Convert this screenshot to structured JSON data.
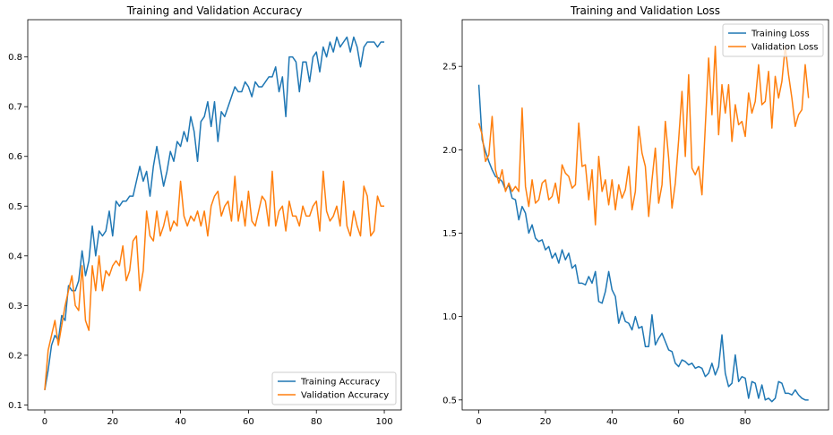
{
  "chart_data": [
    {
      "type": "line",
      "title": "Training and Validation Accuracy",
      "xlim": [
        -5,
        105
      ],
      "ylim": [
        0.09,
        0.875
      ],
      "xticks": [
        0,
        20,
        40,
        60,
        80,
        100
      ],
      "xtick_labels": [
        "0",
        "20",
        "40",
        "60",
        "80",
        "100"
      ],
      "yticks": [
        0.1,
        0.2,
        0.3,
        0.4,
        0.5,
        0.6,
        0.7,
        0.8
      ],
      "ytick_labels": [
        "0.1",
        "0.2",
        "0.3",
        "0.4",
        "0.5",
        "0.6",
        "0.7",
        "0.8"
      ],
      "grid": false,
      "legend_position": "lower-right",
      "x": [
        0,
        1,
        2,
        3,
        4,
        5,
        6,
        7,
        8,
        9,
        10,
        11,
        12,
        13,
        14,
        15,
        16,
        17,
        18,
        19,
        20,
        21,
        22,
        23,
        24,
        25,
        26,
        27,
        28,
        29,
        30,
        31,
        32,
        33,
        34,
        35,
        36,
        37,
        38,
        39,
        40,
        41,
        42,
        43,
        44,
        45,
        46,
        47,
        48,
        49,
        50,
        51,
        52,
        53,
        54,
        55,
        56,
        57,
        58,
        59,
        60,
        61,
        62,
        63,
        64,
        65,
        66,
        67,
        68,
        69,
        70,
        71,
        72,
        73,
        74,
        75,
        76,
        77,
        78,
        79,
        80,
        81,
        82,
        83,
        84,
        85,
        86,
        87,
        88,
        89,
        90,
        91,
        92,
        93,
        94,
        95,
        96,
        97,
        98,
        99,
        100
      ],
      "series": [
        {
          "name": "Training Accuracy",
          "color": "#1f77b4",
          "values": [
            0.13,
            0.17,
            0.22,
            0.24,
            0.23,
            0.28,
            0.27,
            0.34,
            0.33,
            0.33,
            0.35,
            0.41,
            0.36,
            0.39,
            0.46,
            0.4,
            0.45,
            0.44,
            0.45,
            0.49,
            0.44,
            0.51,
            0.5,
            0.51,
            0.51,
            0.52,
            0.52,
            0.55,
            0.58,
            0.55,
            0.57,
            0.52,
            0.58,
            0.62,
            0.58,
            0.54,
            0.57,
            0.61,
            0.59,
            0.63,
            0.62,
            0.65,
            0.63,
            0.68,
            0.65,
            0.59,
            0.67,
            0.68,
            0.71,
            0.66,
            0.71,
            0.63,
            0.69,
            0.68,
            0.7,
            0.72,
            0.74,
            0.73,
            0.73,
            0.75,
            0.74,
            0.72,
            0.75,
            0.74,
            0.74,
            0.75,
            0.76,
            0.76,
            0.78,
            0.73,
            0.76,
            0.68,
            0.8,
            0.8,
            0.79,
            0.73,
            0.79,
            0.79,
            0.75,
            0.8,
            0.81,
            0.77,
            0.82,
            0.8,
            0.83,
            0.81,
            0.84,
            0.82,
            0.83,
            0.84,
            0.81,
            0.84,
            0.82,
            0.78,
            0.82,
            0.83,
            0.83,
            0.83,
            0.82,
            0.83,
            0.83
          ]
        },
        {
          "name": "Validation Accuracy",
          "color": "#ff7f0e",
          "values": [
            0.13,
            0.21,
            0.24,
            0.27,
            0.22,
            0.26,
            0.3,
            0.33,
            0.36,
            0.3,
            0.29,
            0.38,
            0.27,
            0.25,
            0.38,
            0.33,
            0.4,
            0.33,
            0.37,
            0.36,
            0.38,
            0.39,
            0.38,
            0.42,
            0.35,
            0.37,
            0.43,
            0.44,
            0.33,
            0.37,
            0.49,
            0.44,
            0.43,
            0.49,
            0.44,
            0.46,
            0.49,
            0.45,
            0.47,
            0.46,
            0.55,
            0.48,
            0.46,
            0.48,
            0.47,
            0.49,
            0.46,
            0.49,
            0.44,
            0.5,
            0.52,
            0.53,
            0.48,
            0.5,
            0.51,
            0.47,
            0.56,
            0.47,
            0.51,
            0.46,
            0.53,
            0.47,
            0.46,
            0.49,
            0.52,
            0.51,
            0.46,
            0.57,
            0.46,
            0.49,
            0.5,
            0.45,
            0.51,
            0.48,
            0.48,
            0.46,
            0.5,
            0.48,
            0.48,
            0.5,
            0.51,
            0.45,
            0.57,
            0.49,
            0.47,
            0.48,
            0.5,
            0.46,
            0.55,
            0.46,
            0.44,
            0.49,
            0.46,
            0.44,
            0.54,
            0.52,
            0.44,
            0.45,
            0.52,
            0.5,
            0.5
          ]
        }
      ]
    },
    {
      "type": "line",
      "title": "Training and Validation Loss",
      "xlim": [
        -5,
        105
      ],
      "ylim": [
        0.44,
        2.78
      ],
      "xticks": [
        0,
        20,
        40,
        60,
        80
      ],
      "xtick_labels": [
        "0",
        "20",
        "40",
        "60",
        "80"
      ],
      "yticks": [
        0.5,
        1.0,
        1.5,
        2.0,
        2.5
      ],
      "ytick_labels": [
        "0.5",
        "1.0",
        "1.5",
        "2.0",
        "2.5"
      ],
      "grid": false,
      "legend_position": "upper-right",
      "x": [
        0,
        1,
        2,
        3,
        4,
        5,
        6,
        7,
        8,
        9,
        10,
        11,
        12,
        13,
        14,
        15,
        16,
        17,
        18,
        19,
        20,
        21,
        22,
        23,
        24,
        25,
        26,
        27,
        28,
        29,
        30,
        31,
        32,
        33,
        34,
        35,
        36,
        37,
        38,
        39,
        40,
        41,
        42,
        43,
        44,
        45,
        46,
        47,
        48,
        49,
        50,
        51,
        52,
        53,
        54,
        55,
        56,
        57,
        58,
        59,
        60,
        61,
        62,
        63,
        64,
        65,
        66,
        67,
        68,
        69,
        70,
        71,
        72,
        73,
        74,
        75,
        76,
        77,
        78,
        79,
        80,
        81,
        82,
        83,
        84,
        85,
        86,
        87,
        88,
        89,
        90,
        91,
        92,
        93,
        94,
        95,
        96,
        97,
        98,
        99
      ],
      "series": [
        {
          "name": "Training Loss",
          "color": "#1f77b4",
          "values": [
            2.39,
            2.06,
            1.99,
            1.93,
            1.88,
            1.84,
            1.83,
            1.81,
            1.76,
            1.79,
            1.71,
            1.7,
            1.58,
            1.66,
            1.62,
            1.5,
            1.55,
            1.47,
            1.45,
            1.46,
            1.4,
            1.42,
            1.35,
            1.38,
            1.32,
            1.4,
            1.34,
            1.38,
            1.29,
            1.31,
            1.2,
            1.2,
            1.19,
            1.24,
            1.2,
            1.27,
            1.09,
            1.08,
            1.15,
            1.27,
            1.16,
            1.12,
            0.96,
            1.03,
            0.97,
            0.96,
            0.92,
            1.0,
            0.93,
            0.94,
            0.82,
            0.82,
            1.01,
            0.83,
            0.87,
            0.9,
            0.85,
            0.8,
            0.79,
            0.72,
            0.7,
            0.74,
            0.73,
            0.71,
            0.72,
            0.69,
            0.7,
            0.69,
            0.64,
            0.66,
            0.72,
            0.65,
            0.7,
            0.89,
            0.66,
            0.58,
            0.6,
            0.77,
            0.61,
            0.64,
            0.63,
            0.51,
            0.61,
            0.6,
            0.51,
            0.59,
            0.5,
            0.51,
            0.49,
            0.51,
            0.61,
            0.6,
            0.54,
            0.54,
            0.53,
            0.56,
            0.53,
            0.51,
            0.5,
            0.5
          ]
        },
        {
          "name": "Validation Loss",
          "color": "#ff7f0e",
          "values": [
            2.16,
            2.09,
            1.93,
            1.97,
            2.2,
            1.88,
            1.8,
            1.88,
            1.75,
            1.8,
            1.75,
            1.78,
            1.75,
            2.25,
            1.78,
            1.66,
            1.82,
            1.68,
            1.7,
            1.8,
            1.82,
            1.7,
            1.72,
            1.8,
            1.68,
            1.91,
            1.86,
            1.84,
            1.77,
            1.79,
            2.16,
            1.9,
            1.91,
            1.7,
            1.88,
            1.55,
            1.96,
            1.75,
            1.82,
            1.67,
            1.82,
            1.64,
            1.79,
            1.71,
            1.76,
            1.9,
            1.64,
            1.75,
            2.14,
            1.98,
            1.9,
            1.6,
            1.82,
            2.01,
            1.68,
            1.79,
            2.17,
            1.95,
            1.65,
            1.8,
            2.06,
            2.35,
            1.96,
            2.45,
            1.89,
            1.85,
            1.9,
            1.73,
            2.14,
            2.55,
            2.21,
            2.62,
            2.09,
            2.39,
            2.22,
            2.39,
            2.05,
            2.27,
            2.15,
            2.17,
            2.08,
            2.34,
            2.22,
            2.29,
            2.51,
            2.27,
            2.29,
            2.47,
            2.13,
            2.44,
            2.31,
            2.41,
            2.62,
            2.45,
            2.31,
            2.14,
            2.21,
            2.24,
            2.51,
            2.31
          ]
        }
      ]
    }
  ]
}
